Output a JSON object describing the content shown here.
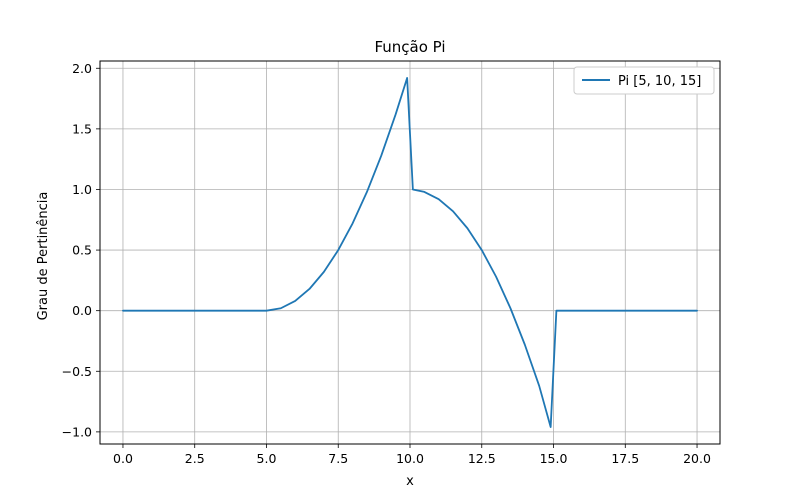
{
  "chart_data": {
    "type": "line",
    "title": "Função Pi",
    "xlabel": "x",
    "ylabel": "Grau de Pertinência",
    "xlim": [
      -0.8,
      20.8
    ],
    "ylim": [
      -1.1,
      2.06
    ],
    "xticks": [
      0.0,
      2.5,
      5.0,
      7.5,
      10.0,
      12.5,
      15.0,
      17.5,
      20.0
    ],
    "xtick_labels": [
      "0.0",
      "2.5",
      "5.0",
      "7.5",
      "10.0",
      "12.5",
      "15.0",
      "17.5",
      "20.0"
    ],
    "yticks": [
      -1.0,
      -0.5,
      0.0,
      0.5,
      1.0,
      1.5,
      2.0
    ],
    "ytick_labels": [
      "−1.0",
      "−0.5",
      "0.0",
      "0.5",
      "1.0",
      "1.5",
      "2.0"
    ],
    "grid": true,
    "legend_position": "top-right",
    "series": [
      {
        "name": "Pi [5, 10, 15]",
        "color": "#1f77b4",
        "x": [
          0,
          1,
          2,
          3,
          4,
          5,
          5.5,
          6,
          6.5,
          7,
          7.5,
          8,
          8.5,
          9,
          9.5,
          9.9,
          10.1,
          10.5,
          11,
          11.5,
          12,
          12.5,
          13,
          13.5,
          14,
          14.5,
          14.9,
          15.1,
          16,
          17,
          18,
          19,
          20
        ],
        "y": [
          0,
          0,
          0,
          0,
          0,
          0,
          0.02,
          0.08,
          0.18,
          0.32,
          0.5,
          0.72,
          0.98,
          1.28,
          1.62,
          1.92,
          1.0,
          0.98,
          0.92,
          0.82,
          0.68,
          0.5,
          0.28,
          0.02,
          -0.28,
          -0.62,
          -0.96,
          0.0,
          0,
          0,
          0,
          0,
          0
        ]
      }
    ]
  }
}
